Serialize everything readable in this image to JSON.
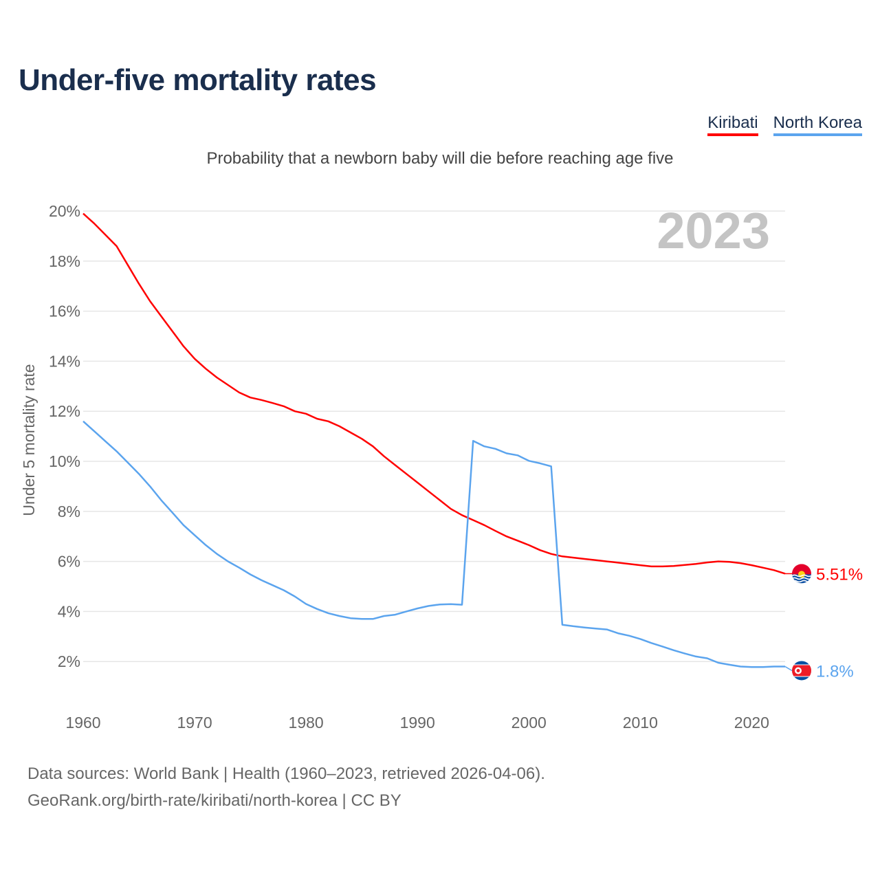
{
  "title": "Under-five mortality rates",
  "subtitle": "Probability that a newborn baby will die before reaching age five",
  "footer": {
    "line1": "Data sources: World Bank | Health (1960–2023, retrieved 2026-04-06).",
    "line2": "GeoRank.org/birth-rate/kiribati/north-korea | CC BY"
  },
  "chart_data": {
    "type": "line",
    "title": "Under-five mortality rates",
    "ylabel": "Under 5 mortality rate",
    "xlabel": "",
    "year_label": "2023",
    "xlim": [
      1960,
      2023
    ],
    "ylim": [
      0,
      20
    ],
    "grid": true,
    "legend_position": "top-right",
    "x_ticks": [
      1960,
      1970,
      1980,
      1990,
      2000,
      2010,
      2020
    ],
    "y_ticks": [
      2,
      4,
      6,
      8,
      10,
      12,
      14,
      16,
      18,
      20
    ],
    "y_tick_labels": [
      "2%",
      "4%",
      "6%",
      "8%",
      "10%",
      "12%",
      "14%",
      "16%",
      "18%",
      "20%"
    ],
    "x_start": 1960,
    "series": [
      {
        "name": "Kiribati",
        "color": "#ff0000",
        "end_label": "5.51%",
        "flag": "kiribati-flag",
        "values": [
          19.9,
          19.5,
          19.05,
          18.6,
          17.85,
          17.1,
          16.4,
          15.8,
          15.2,
          14.6,
          14.1,
          13.7,
          13.35,
          13.05,
          12.75,
          12.55,
          12.45,
          12.33,
          12.2,
          12.0,
          11.9,
          11.7,
          11.6,
          11.4,
          11.15,
          10.9,
          10.6,
          10.2,
          9.85,
          9.5,
          9.15,
          8.8,
          8.45,
          8.1,
          7.85,
          7.65,
          7.45,
          7.22,
          7.0,
          6.83,
          6.65,
          6.45,
          6.3,
          6.2,
          6.15,
          6.1,
          6.05,
          6.0,
          5.95,
          5.9,
          5.85,
          5.8,
          5.8,
          5.82,
          5.86,
          5.9,
          5.96,
          6.0,
          5.98,
          5.93,
          5.85,
          5.75,
          5.65,
          5.51
        ]
      },
      {
        "name": "North Korea",
        "color": "#5ba4ee",
        "end_label": "1.8%",
        "flag": "north-korea-flag",
        "values": [
          11.6,
          11.2,
          10.8,
          10.4,
          9.95,
          9.5,
          9.0,
          8.45,
          7.95,
          7.45,
          7.05,
          6.65,
          6.3,
          6.0,
          5.75,
          5.48,
          5.25,
          5.05,
          4.85,
          4.6,
          4.3,
          4.1,
          3.93,
          3.82,
          3.73,
          3.7,
          3.7,
          3.82,
          3.87,
          4.0,
          4.12,
          4.22,
          4.28,
          4.29,
          4.27,
          10.82,
          10.6,
          10.5,
          10.32,
          10.24,
          10.02,
          9.92,
          9.8,
          3.47,
          3.41,
          3.36,
          3.32,
          3.28,
          3.13,
          3.03,
          2.9,
          2.74,
          2.6,
          2.45,
          2.32,
          2.2,
          2.13,
          1.95,
          1.87,
          1.8,
          1.78,
          1.78,
          1.8,
          1.8
        ]
      }
    ]
  }
}
